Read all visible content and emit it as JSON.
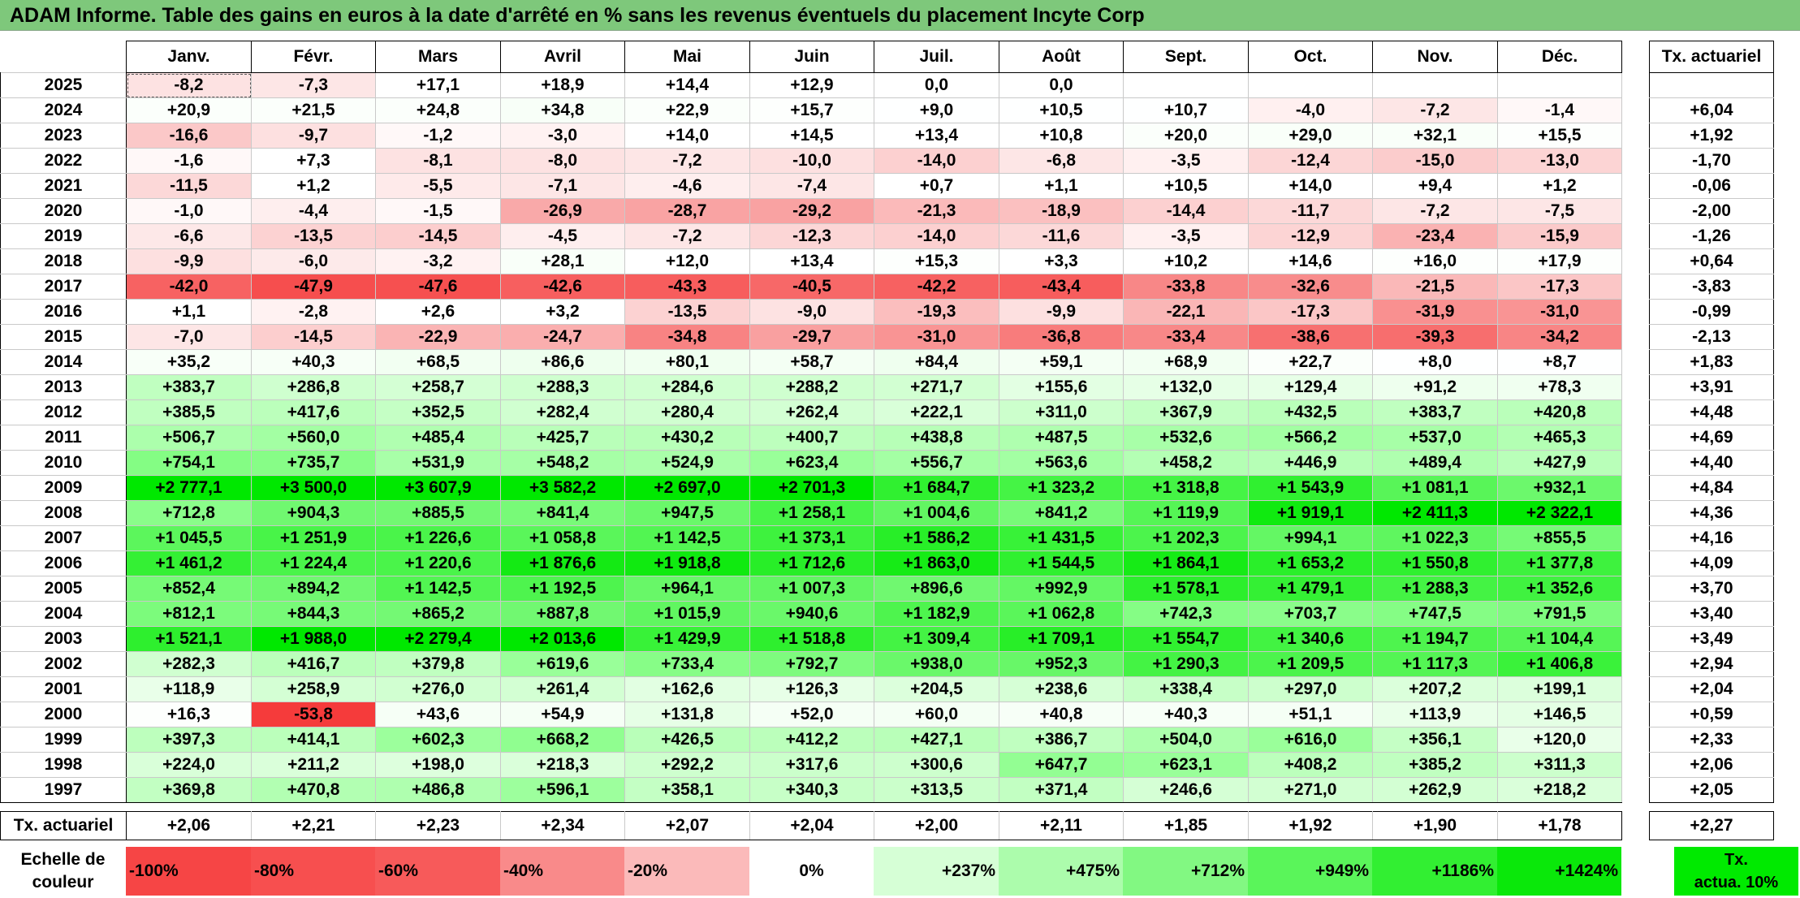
{
  "title": "ADAM Informe. Table des gains en euros à la date d'arrêté en % sans les revenus éventuels du placement Incyte Corp",
  "months": [
    "Janv.",
    "Févr.",
    "Mars",
    "Avril",
    "Mai",
    "Juin",
    "Juil.",
    "Août",
    "Sept.",
    "Oct.",
    "Nov.",
    "Déc."
  ],
  "actuarial_header": "Tx. actuariel",
  "rows": [
    {
      "year": "2025",
      "values": [
        "-8,2",
        "-7,3",
        "+17,1",
        "+18,9",
        "+14,4",
        "+12,9",
        "0,0",
        "0,0",
        "",
        "",
        "",
        ""
      ],
      "colors": [
        "#fde2e2",
        "#fde6e6",
        "#ffffff",
        "#ffffff",
        "#ffffff",
        "#ffffff",
        "#ffffff",
        "#ffffff",
        "#ffffff",
        "#ffffff",
        "#ffffff",
        "#ffffff"
      ],
      "rate": ""
    },
    {
      "year": "2024",
      "values": [
        "+20,9",
        "+21,5",
        "+24,8",
        "+34,8",
        "+22,9",
        "+15,7",
        "+9,0",
        "+10,5",
        "+10,7",
        "-4,0",
        "-7,2",
        "-1,4"
      ],
      "colors": [
        "#fbfffb",
        "#fbfffb",
        "#fbfffb",
        "#f8fff8",
        "#fbfffb",
        "#fdfffd",
        "#feffff",
        "#feffff",
        "#feffff",
        "#fff0f0",
        "#fde6e6",
        "#fff8f8"
      ],
      "rate": "+6,04"
    },
    {
      "year": "2023",
      "values": [
        "-16,6",
        "-9,7",
        "-1,2",
        "-3,0",
        "+14,0",
        "+14,5",
        "+13,4",
        "+10,8",
        "+20,0",
        "+29,0",
        "+32,1",
        "+15,5"
      ],
      "colors": [
        "#fbc8c8",
        "#fde0e0",
        "#fff8f8",
        "#fff2f2",
        "#ffffff",
        "#ffffff",
        "#ffffff",
        "#ffffff",
        "#fbfffb",
        "#f9fff9",
        "#f9fff9",
        "#fdfffd"
      ],
      "rate": "+1,92"
    },
    {
      "year": "2022",
      "values": [
        "-1,6",
        "+7,3",
        "-8,1",
        "-8,0",
        "-7,2",
        "-10,0",
        "-14,0",
        "-6,8",
        "-3,5",
        "-12,4",
        "-15,0",
        "-13,0"
      ],
      "colors": [
        "#fff8f8",
        "#ffffff",
        "#fde2e2",
        "#fde2e2",
        "#fde6e6",
        "#fde0e0",
        "#fcd0d0",
        "#fde6e6",
        "#fff0f0",
        "#fcd6d6",
        "#fbcccc",
        "#fcd4d4"
      ],
      "rate": "-1,70"
    },
    {
      "year": "2021",
      "values": [
        "-11,5",
        "+1,2",
        "-5,5",
        "-7,1",
        "-4,6",
        "-7,4",
        "+0,7",
        "+1,1",
        "+10,5",
        "+14,0",
        "+9,4",
        "+1,2"
      ],
      "colors": [
        "#fcd8d8",
        "#ffffff",
        "#feeaea",
        "#fde6e6",
        "#feeeee",
        "#fde6e6",
        "#ffffff",
        "#ffffff",
        "#ffffff",
        "#ffffff",
        "#ffffff",
        "#ffffff"
      ],
      "rate": "-0,06"
    },
    {
      "year": "2020",
      "values": [
        "-1,0",
        "-4,4",
        "-1,5",
        "-26,9",
        "-28,7",
        "-29,2",
        "-21,3",
        "-18,9",
        "-14,4",
        "-11,7",
        "-7,2",
        "-7,5"
      ],
      "colors": [
        "#fff8f8",
        "#feeeee",
        "#fff8f8",
        "#f9a9a9",
        "#f9a3a3",
        "#f9a2a2",
        "#fbbaba",
        "#fbc0c0",
        "#fcd0d0",
        "#fcd8d8",
        "#fde6e6",
        "#fde6e6"
      ],
      "rate": "-2,00"
    },
    {
      "year": "2019",
      "values": [
        "-6,6",
        "-13,5",
        "-14,5",
        "-4,5",
        "-7,2",
        "-12,3",
        "-14,0",
        "-11,6",
        "-3,5",
        "-12,9",
        "-23,4",
        "-15,9"
      ],
      "colors": [
        "#fde8e8",
        "#fcd2d2",
        "#fccece",
        "#feeeee",
        "#fde6e6",
        "#fcd6d6",
        "#fcd0d0",
        "#fcd8d8",
        "#fff0f0",
        "#fcd4d4",
        "#fab2b2",
        "#fbcaca"
      ],
      "rate": "-1,26"
    },
    {
      "year": "2018",
      "values": [
        "-9,9",
        "-6,0",
        "-3,2",
        "+28,1",
        "+12,0",
        "+13,4",
        "+15,3",
        "+3,3",
        "+10,2",
        "+14,6",
        "+16,0",
        "+17,9"
      ],
      "colors": [
        "#fde0e0",
        "#fdeaea",
        "#fff2f2",
        "#f9fff9",
        "#ffffff",
        "#ffffff",
        "#fdfffd",
        "#ffffff",
        "#ffffff",
        "#ffffff",
        "#fdfffd",
        "#fdfffd"
      ],
      "rate": "+0,64"
    },
    {
      "year": "2017",
      "values": [
        "-42,0",
        "-47,9",
        "-47,6",
        "-42,6",
        "-43,3",
        "-40,5",
        "-42,2",
        "-43,4",
        "-33,8",
        "-32,6",
        "-21,5",
        "-17,3"
      ],
      "colors": [
        "#f76262",
        "#f64e4e",
        "#f65050",
        "#f75f5f",
        "#f75d5d",
        "#f76868",
        "#f76161",
        "#f75d5d",
        "#f88787",
        "#f88c8c",
        "#fab8b8",
        "#fbc6c6"
      ],
      "rate": "-3,83"
    },
    {
      "year": "2016",
      "values": [
        "+1,1",
        "-2,8",
        "+2,6",
        "+3,2",
        "-13,5",
        "-9,0",
        "-19,3",
        "-9,9",
        "-22,1",
        "-17,3",
        "-31,9",
        "-31,0"
      ],
      "colors": [
        "#ffffff",
        "#fff2f2",
        "#ffffff",
        "#ffffff",
        "#fcd2d2",
        "#fde2e2",
        "#fbbebe",
        "#fde0e0",
        "#fab6b6",
        "#fbc6c6",
        "#f99090",
        "#f99494"
      ],
      "rate": "-0,99"
    },
    {
      "year": "2015",
      "values": [
        "-7,0",
        "-14,5",
        "-22,9",
        "-24,7",
        "-34,8",
        "-29,7",
        "-31,0",
        "-36,8",
        "-33,4",
        "-38,6",
        "-39,3",
        "-34,2"
      ],
      "colors": [
        "#fde6e6",
        "#fccece",
        "#fab4b4",
        "#faaeae",
        "#f88383",
        "#f9a0a0",
        "#f99494",
        "#f87c7c",
        "#f88888",
        "#f77070",
        "#f76e6e",
        "#f88585"
      ],
      "rate": "-2,13"
    },
    {
      "year": "2014",
      "values": [
        "+35,2",
        "+40,3",
        "+68,5",
        "+86,6",
        "+80,1",
        "+58,7",
        "+84,4",
        "+59,1",
        "+68,9",
        "+22,7",
        "+8,0",
        "+8,7"
      ],
      "colors": [
        "#f8fff8",
        "#f7fff7",
        "#f2fff2",
        "#eeffee",
        "#f0fff0",
        "#f4fff4",
        "#efffef",
        "#f4fff4",
        "#f2fff2",
        "#fbfffb",
        "#feffff",
        "#feffff"
      ],
      "rate": "+1,83"
    },
    {
      "year": "2013",
      "values": [
        "+383,7",
        "+286,8",
        "+258,7",
        "+288,3",
        "+284,6",
        "+288,2",
        "+271,7",
        "+155,6",
        "+132,0",
        "+129,4",
        "+91,2",
        "+78,3"
      ],
      "colors": [
        "#c0ffc0",
        "#cfffcf",
        "#d4ffd4",
        "#cfffcf",
        "#d0ffd0",
        "#cfffcf",
        "#d2ffd2",
        "#e3ffe3",
        "#e6ffe6",
        "#e7ffe7",
        "#eeffee",
        "#f0fff0"
      ],
      "rate": "+3,91"
    },
    {
      "year": "2012",
      "values": [
        "+385,5",
        "+417,6",
        "+352,5",
        "+282,4",
        "+280,4",
        "+262,4",
        "+222,1",
        "+311,0",
        "+367,9",
        "+432,5",
        "+383,7",
        "+420,8"
      ],
      "colors": [
        "#c0ffc0",
        "#bbffbb",
        "#c5ffc5",
        "#d0ffd0",
        "#d0ffd0",
        "#d3ffd3",
        "#d9ffd9",
        "#ccffcc",
        "#c3ffc3",
        "#b9ffb9",
        "#c0ffc0",
        "#baffba"
      ],
      "rate": "+4,48"
    },
    {
      "year": "2011",
      "values": [
        "+506,7",
        "+560,0",
        "+485,4",
        "+425,7",
        "+430,2",
        "+400,7",
        "+438,8",
        "+487,5",
        "+532,6",
        "+566,2",
        "+537,0",
        "+465,3"
      ],
      "colors": [
        "#acffac",
        "#a3ffa3",
        "#b0ffb0",
        "#b9ffb9",
        "#b8ffb8",
        "#bdffbd",
        "#b7ffb7",
        "#afffaf",
        "#a8ffa8",
        "#a2ffa2",
        "#a7ffa7",
        "#b3ffb3"
      ],
      "rate": "+4,69"
    },
    {
      "year": "2010",
      "values": [
        "+754,1",
        "+735,7",
        "+531,9",
        "+548,2",
        "+524,9",
        "+623,4",
        "+556,7",
        "+563,6",
        "+458,2",
        "+446,9",
        "+489,4",
        "+427,9"
      ],
      "colors": [
        "#84fd84",
        "#87fd87",
        "#a8ffa8",
        "#a6ffa6",
        "#a9ffa9",
        "#99ff99",
        "#a4ffa4",
        "#a3ffa3",
        "#b4ffb4",
        "#b6ffb6",
        "#afffaf",
        "#b9ffb9"
      ],
      "rate": "+4,40"
    },
    {
      "year": "2009",
      "values": [
        "+2 777,1",
        "+3 500,0",
        "+3 607,9",
        "+3 582,2",
        "+2 697,0",
        "+2 701,3",
        "+1 684,7",
        "+1 323,2",
        "+1 318,8",
        "+1 543,9",
        "+1 081,1",
        "+932,1"
      ],
      "colors": [
        "#00e800",
        "#00e800",
        "#00e800",
        "#00e800",
        "#00e800",
        "#00e800",
        "#30f030",
        "#45f445",
        "#45f445",
        "#30f030",
        "#58f558",
        "#6cf86c"
      ],
      "rate": "+4,84"
    },
    {
      "year": "2008",
      "values": [
        "+712,8",
        "+904,3",
        "+885,5",
        "+841,4",
        "+947,5",
        "+1 258,1",
        "+1 004,6",
        "+841,2",
        "+1 119,9",
        "+1 919,1",
        "+2 411,3",
        "+2 322,1"
      ],
      "colors": [
        "#8afd8a",
        "#70f870",
        "#72f872",
        "#78fa78",
        "#6af86a",
        "#48f448",
        "#62f662",
        "#78fa78",
        "#55f555",
        "#10ea10",
        "#00e800",
        "#00e800"
      ],
      "rate": "+4,36"
    },
    {
      "year": "2007",
      "values": [
        "+1 045,5",
        "+1 251,9",
        "+1 226,6",
        "+1 058,8",
        "+1 142,5",
        "+1 373,1",
        "+1 586,2",
        "+1 431,5",
        "+1 202,3",
        "+994,1",
        "+1 022,3",
        "+855,5"
      ],
      "colors": [
        "#5cf65c",
        "#48f448",
        "#4af44a",
        "#5af65a",
        "#52f552",
        "#3ef23e",
        "#28ee28",
        "#38f238",
        "#4cf44c",
        "#64f764",
        "#5ff65f",
        "#76fa76"
      ],
      "rate": "+4,16"
    },
    {
      "year": "2006",
      "values": [
        "+1 461,2",
        "+1 224,4",
        "+1 220,6",
        "+1 876,6",
        "+1 918,8",
        "+1 712,6",
        "+1 863,0",
        "+1 544,5",
        "+1 864,1",
        "+1 653,2",
        "+1 550,8",
        "+1 377,8"
      ],
      "colors": [
        "#34f034",
        "#4af44a",
        "#4af44a",
        "#14ea14",
        "#10ea10",
        "#28ee28",
        "#16eb16",
        "#30f030",
        "#16eb16",
        "#2aef2a",
        "#30f030",
        "#3ef23e"
      ],
      "rate": "+4,09"
    },
    {
      "year": "2005",
      "values": [
        "+852,4",
        "+894,2",
        "+1 142,5",
        "+1 192,5",
        "+964,1",
        "+1 007,3",
        "+896,6",
        "+992,9",
        "+1 578,1",
        "+1 479,1",
        "+1 288,3",
        "+1 352,6"
      ],
      "colors": [
        "#76fa76",
        "#70f870",
        "#52f552",
        "#4ef44e",
        "#68f768",
        "#62f662",
        "#70f870",
        "#64f764",
        "#2cef2c",
        "#34f034",
        "#44f344",
        "#40f240"
      ],
      "rate": "+3,70"
    },
    {
      "year": "2004",
      "values": [
        "+812,1",
        "+844,3",
        "+865,2",
        "+887,8",
        "+1 015,9",
        "+940,6",
        "+1 182,9",
        "+1 062,8",
        "+742,3",
        "+703,7",
        "+747,5",
        "+791,5"
      ],
      "colors": [
        "#7cfb7c",
        "#77fa77",
        "#74f974",
        "#71f871",
        "#60f660",
        "#6af86a",
        "#4ef44e",
        "#5af65a",
        "#85fd85",
        "#8afd8a",
        "#85fd85",
        "#7efb7e"
      ],
      "rate": "+3,40"
    },
    {
      "year": "2003",
      "values": [
        "+1 521,1",
        "+1 988,0",
        "+2 279,4",
        "+2 013,6",
        "+1 429,9",
        "+1 518,8",
        "+1 309,4",
        "+1 709,1",
        "+1 554,7",
        "+1 340,6",
        "+1 194,7",
        "+1 104,4"
      ],
      "colors": [
        "#2eef2e",
        "#00e800",
        "#00e800",
        "#00e800",
        "#38f238",
        "#2eef2e",
        "#44f344",
        "#28ee28",
        "#30f030",
        "#42f342",
        "#4ef44e",
        "#56f556"
      ],
      "rate": "+3,49"
    },
    {
      "year": "2002",
      "values": [
        "+282,3",
        "+416,7",
        "+379,8",
        "+619,6",
        "+733,4",
        "+792,7",
        "+938,0",
        "+952,3",
        "+1 290,3",
        "+1 209,5",
        "+1 117,3",
        "+1 406,8"
      ],
      "colors": [
        "#d0ffd0",
        "#bbffbb",
        "#c0ffc0",
        "#99ff99",
        "#87fd87",
        "#7efb7e",
        "#6af86a",
        "#68f768",
        "#44f344",
        "#4cf44c",
        "#54f554",
        "#3af23a"
      ],
      "rate": "+2,94"
    },
    {
      "year": "2001",
      "values": [
        "+118,9",
        "+258,9",
        "+276,0",
        "+261,4",
        "+162,6",
        "+126,3",
        "+204,5",
        "+238,6",
        "+338,4",
        "+297,0",
        "+207,2",
        "+199,1"
      ],
      "colors": [
        "#e9ffe9",
        "#d4ffd4",
        "#d1ffd1",
        "#d3ffd3",
        "#e2ffe2",
        "#e7ffe7",
        "#dcffdc",
        "#d6ffd6",
        "#c7ffc7",
        "#cdffcd",
        "#dbffdb",
        "#dcffdc"
      ],
      "rate": "+2,04"
    },
    {
      "year": "2000",
      "values": [
        "+16,3",
        "-53,8",
        "+43,6",
        "+54,9",
        "+131,8",
        "+52,0",
        "+60,0",
        "+40,8",
        "+40,3",
        "+51,1",
        "+113,9",
        "+146,5"
      ],
      "colors": [
        "#fdfffd",
        "#f53b3b",
        "#f6fff6",
        "#f5fff5",
        "#e6ffe6",
        "#f5fff5",
        "#f4fff4",
        "#f7fff7",
        "#f7fff7",
        "#f5fff5",
        "#e9ffe9",
        "#e4ffe4"
      ],
      "rate": "+0,59"
    },
    {
      "year": "1999",
      "values": [
        "+397,3",
        "+414,1",
        "+602,3",
        "+668,2",
        "+426,5",
        "+412,2",
        "+427,1",
        "+386,7",
        "+504,0",
        "+616,0",
        "+356,1",
        "+120,0"
      ],
      "colors": [
        "#bdffbd",
        "#bbffbb",
        "#9cff9c",
        "#90fe90",
        "#b9ffb9",
        "#bbffbb",
        "#b9ffb9",
        "#c0ffc0",
        "#acffac",
        "#9aff9a",
        "#c5ffc5",
        "#e9ffe9"
      ],
      "rate": "+2,33"
    },
    {
      "year": "1998",
      "values": [
        "+224,0",
        "+211,2",
        "+198,0",
        "+218,3",
        "+292,2",
        "+317,6",
        "+300,6",
        "+647,7",
        "+623,1",
        "+408,2",
        "+385,2",
        "+311,3"
      ],
      "colors": [
        "#d9ffd9",
        "#daffda",
        "#ddffdd",
        "#daffda",
        "#ceffce",
        "#cbffcb",
        "#cdffcd",
        "#93fe93",
        "#99ff99",
        "#bcffbc",
        "#c0ffc0",
        "#ccffcc"
      ],
      "rate": "+2,06"
    },
    {
      "year": "1997",
      "values": [
        "+369,8",
        "+470,8",
        "+486,8",
        "+596,1",
        "+358,1",
        "+340,3",
        "+313,5",
        "+371,4",
        "+246,6",
        "+271,0",
        "+262,9",
        "+218,2"
      ],
      "colors": [
        "#c2ffc2",
        "#b2ffb2",
        "#afffaf",
        "#9dff9d",
        "#c4ffc4",
        "#c7ffc7",
        "#cbffcb",
        "#c2ffc2",
        "#d5ffd5",
        "#d2ffd2",
        "#d3ffd3",
        "#daffda"
      ],
      "rate": "+2,05"
    }
  ],
  "footer": {
    "label": "Tx. actuariel",
    "values": [
      "+2,06",
      "+2,21",
      "+2,23",
      "+2,34",
      "+2,07",
      "+2,04",
      "+2,00",
      "+2,11",
      "+1,85",
      "+1,92",
      "+1,90",
      "+1,78"
    ],
    "rate": "+2,27"
  },
  "scale": {
    "label_line1": "Echelle de",
    "label_line2": "couleur",
    "cells": [
      {
        "text": "-100%",
        "color": "#f64545",
        "kind": "neg"
      },
      {
        "text": "-80%",
        "color": "#f74f4f",
        "kind": "neg"
      },
      {
        "text": "-60%",
        "color": "#f75a5a",
        "kind": "neg"
      },
      {
        "text": "-40%",
        "color": "#f98a8a",
        "kind": "neg"
      },
      {
        "text": "-20%",
        "color": "#fbbaba",
        "kind": "neg"
      },
      {
        "text": "0%",
        "color": "#ffffff",
        "kind": "zero"
      },
      {
        "text": "+237%",
        "color": "#d6ffd6",
        "kind": "pos"
      },
      {
        "text": "+475%",
        "color": "#acfcac",
        "kind": "pos"
      },
      {
        "text": "+712%",
        "color": "#82f882",
        "kind": "pos"
      },
      {
        "text": "+949%",
        "color": "#5af55a",
        "kind": "pos"
      },
      {
        "text": "+1186%",
        "color": "#32ef32",
        "kind": "pos"
      },
      {
        "text": "+1424%",
        "color": "#0ae80a",
        "kind": "pos"
      }
    ],
    "tx_line1": "Tx.",
    "tx_line2": "actua. 10%",
    "tx_color": "#00ea00"
  },
  "colors": {
    "title_bar": "#7ec87b"
  }
}
